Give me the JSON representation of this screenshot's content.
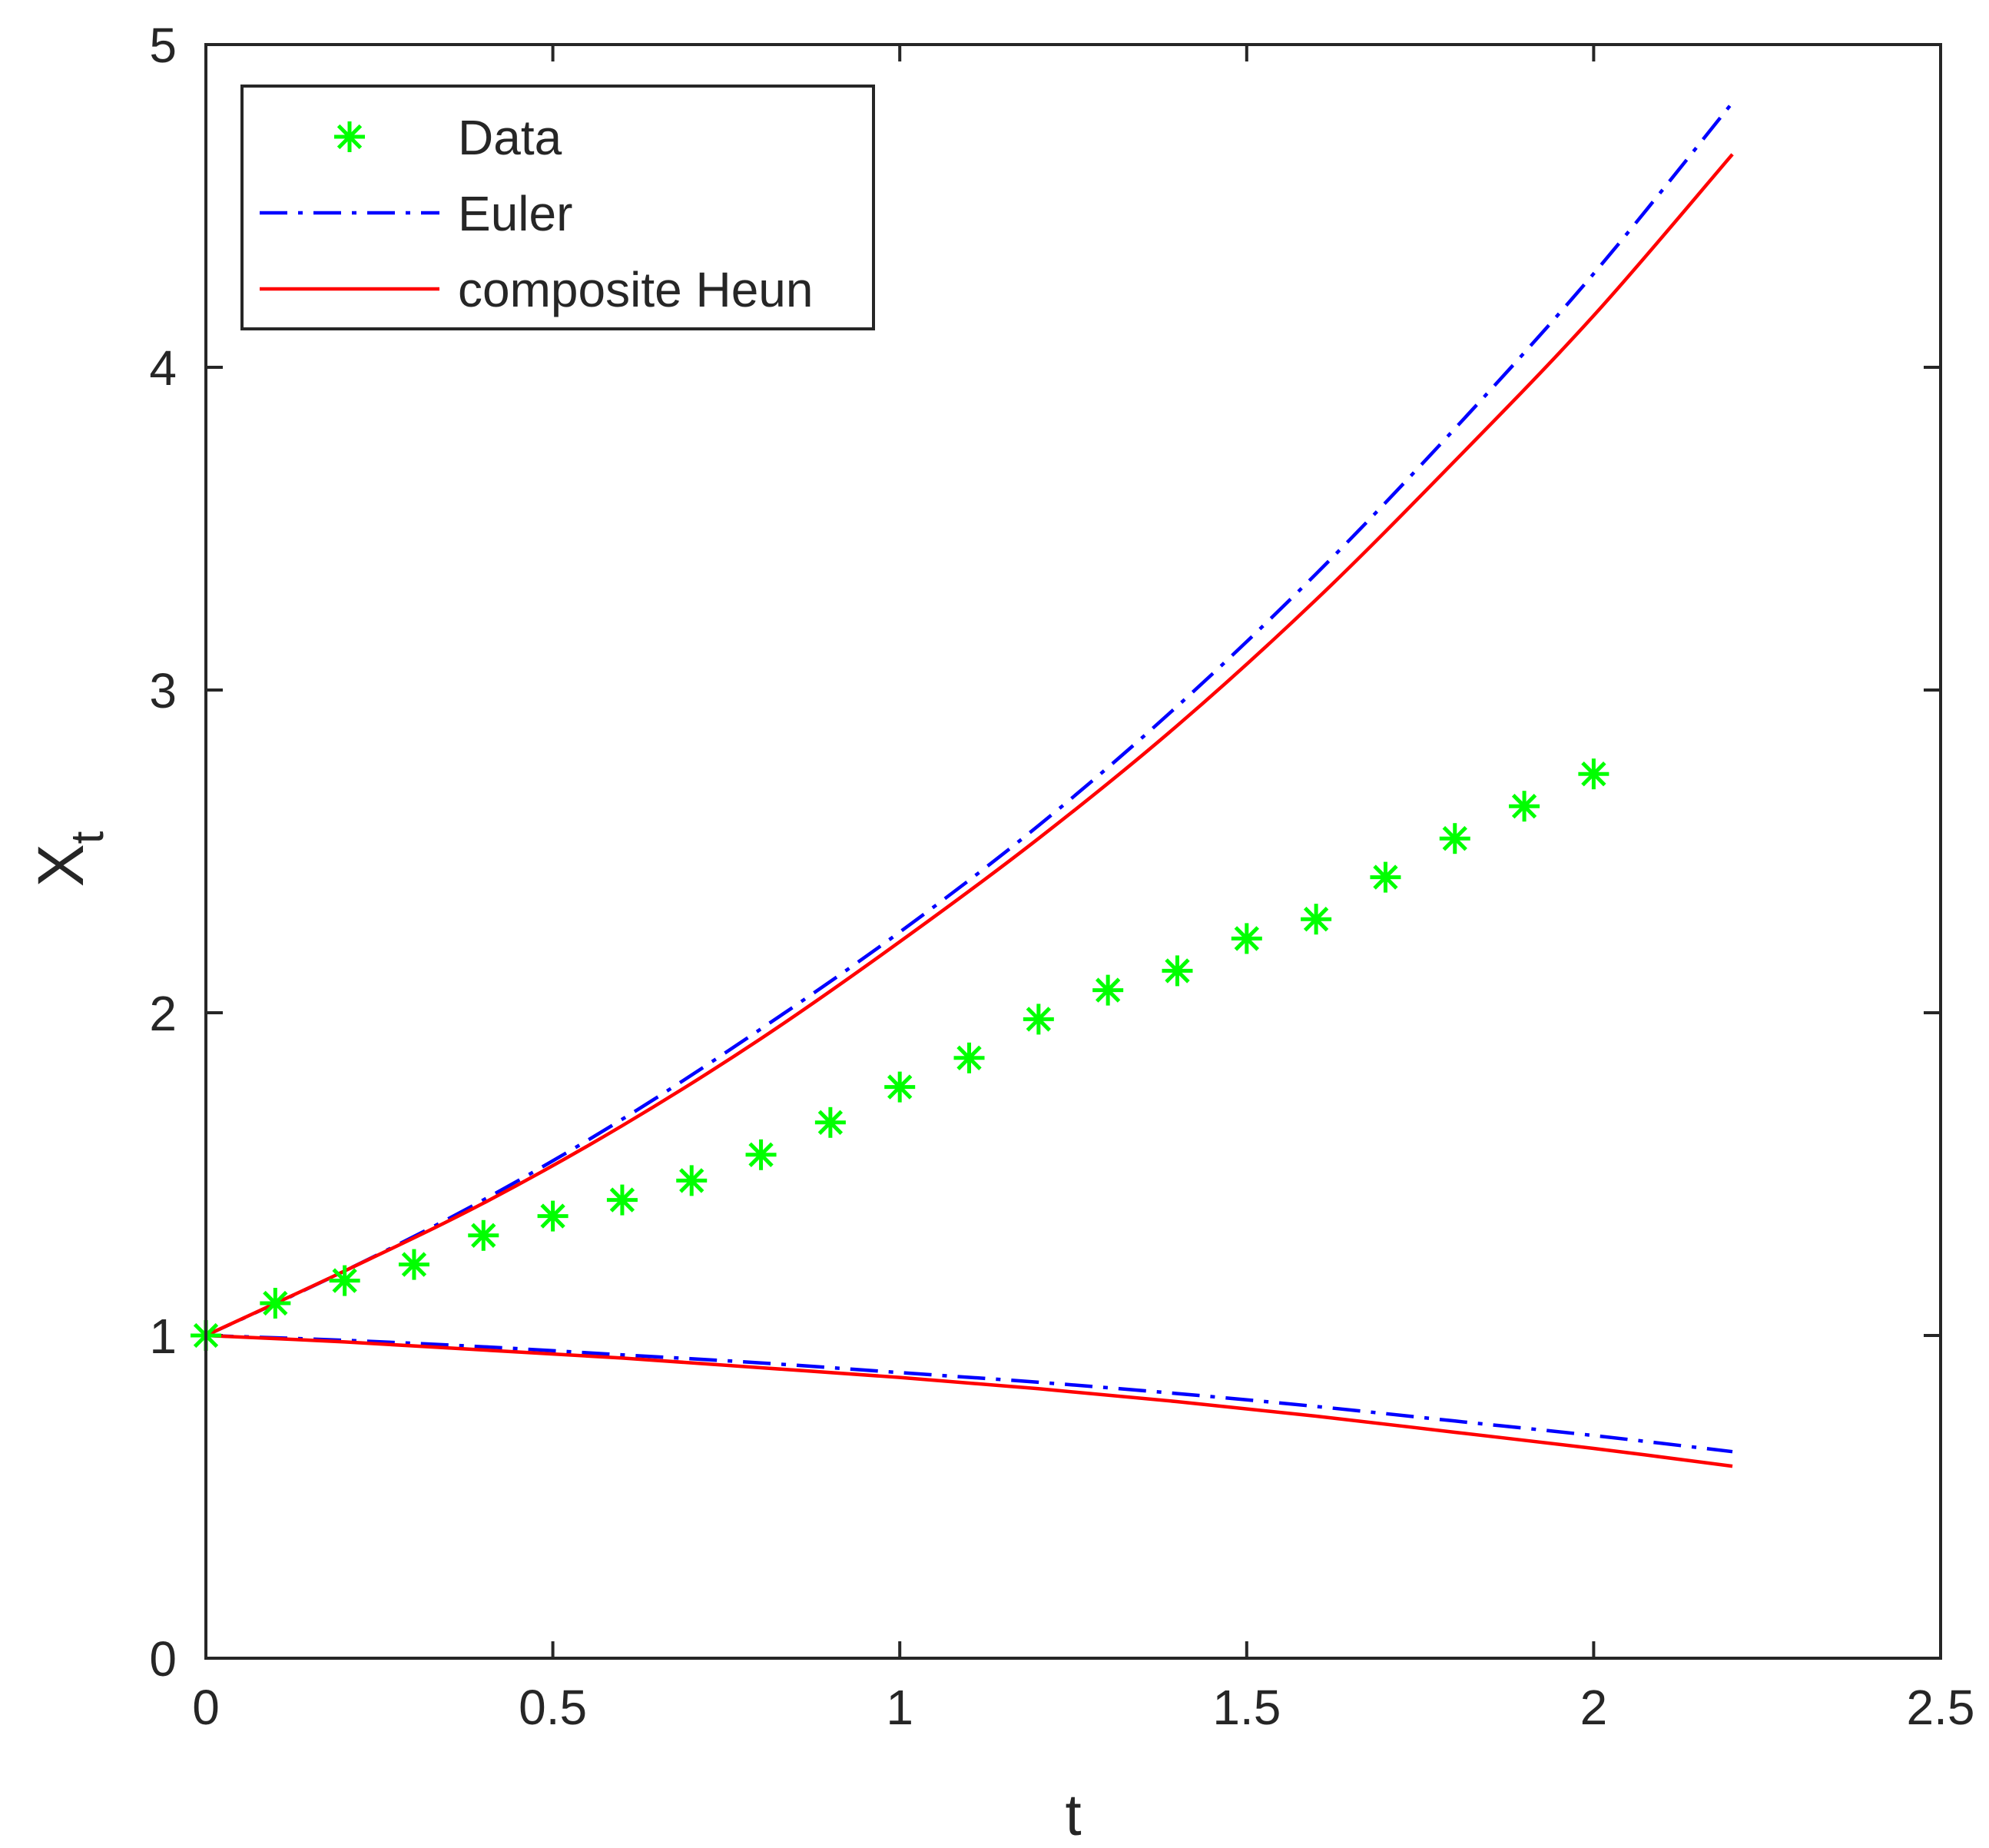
{
  "chart_data": {
    "type": "line",
    "title": "",
    "xlabel": "t",
    "ylabel_main": "X",
    "ylabel_sub": "t",
    "xlim": [
      0,
      2.5
    ],
    "ylim": [
      0,
      5
    ],
    "xticks": [
      0,
      0.5,
      1,
      1.5,
      2,
      2.5
    ],
    "xtick_labels": [
      "0",
      "0.5",
      "1",
      "1.5",
      "2",
      "2.5"
    ],
    "yticks": [
      0,
      1,
      2,
      3,
      4,
      5
    ],
    "ytick_labels": [
      "0",
      "1",
      "2",
      "3",
      "4",
      "5"
    ],
    "legend_position": "top-left",
    "legend": [
      {
        "label": "Data",
        "style": "marker-star",
        "color": "#00ff00"
      },
      {
        "label": "Euler",
        "style": "dash-dot",
        "color": "#0000ff"
      },
      {
        "label": "composite Heun",
        "style": "solid",
        "color": "#ff0000"
      }
    ],
    "data_series": {
      "name": "Data",
      "color": "#00ff00",
      "x": [
        0,
        0.1,
        0.2,
        0.3,
        0.4,
        0.5,
        0.6,
        0.7,
        0.8,
        0.9,
        1.0,
        1.1,
        1.2,
        1.3,
        1.4,
        1.5,
        1.6,
        1.7,
        1.8,
        1.9,
        2.0
      ],
      "y": [
        1.0,
        1.1,
        1.17,
        1.22,
        1.31,
        1.37,
        1.42,
        1.48,
        1.56,
        1.66,
        1.77,
        1.86,
        1.98,
        2.07,
        2.13,
        2.23,
        2.29,
        2.42,
        2.54,
        2.64,
        2.74
      ]
    },
    "series": [
      {
        "name": "Euler",
        "part": "upper",
        "color": "#0000ff",
        "style": "dash-dot",
        "x": [
          0,
          0.2,
          0.4,
          0.6,
          0.8,
          1.0,
          1.2,
          1.4,
          1.6,
          1.8,
          2.0,
          2.2
        ],
        "y": [
          1.0,
          1.2,
          1.42,
          1.67,
          1.95,
          2.25,
          2.58,
          2.95,
          3.36,
          3.81,
          4.29,
          4.82
        ]
      },
      {
        "name": "Euler",
        "part": "lower",
        "color": "#0000ff",
        "style": "dash-dot",
        "x": [
          0,
          0.2,
          0.4,
          0.6,
          0.8,
          1.0,
          1.2,
          1.4,
          1.6,
          1.8,
          2.0,
          2.2
        ],
        "y": [
          1.0,
          0.985,
          0.965,
          0.94,
          0.915,
          0.885,
          0.855,
          0.82,
          0.78,
          0.735,
          0.69,
          0.64
        ]
      },
      {
        "name": "composite Heun",
        "part": "upper",
        "color": "#ff0000",
        "style": "solid",
        "x": [
          0,
          0.2,
          0.4,
          0.6,
          0.8,
          1.0,
          1.2,
          1.4,
          1.6,
          1.8,
          2.0,
          2.2
        ],
        "y": [
          1.0,
          1.2,
          1.41,
          1.65,
          1.92,
          2.22,
          2.54,
          2.89,
          3.28,
          3.71,
          4.16,
          4.66
        ]
      },
      {
        "name": "composite Heun",
        "part": "lower",
        "color": "#ff0000",
        "style": "solid",
        "x": [
          0,
          0.2,
          0.4,
          0.6,
          0.8,
          1.0,
          1.2,
          1.4,
          1.6,
          1.8,
          2.0,
          2.2
        ],
        "y": [
          1.0,
          0.98,
          0.955,
          0.93,
          0.9,
          0.87,
          0.835,
          0.795,
          0.75,
          0.7,
          0.65,
          0.595
        ]
      }
    ]
  }
}
